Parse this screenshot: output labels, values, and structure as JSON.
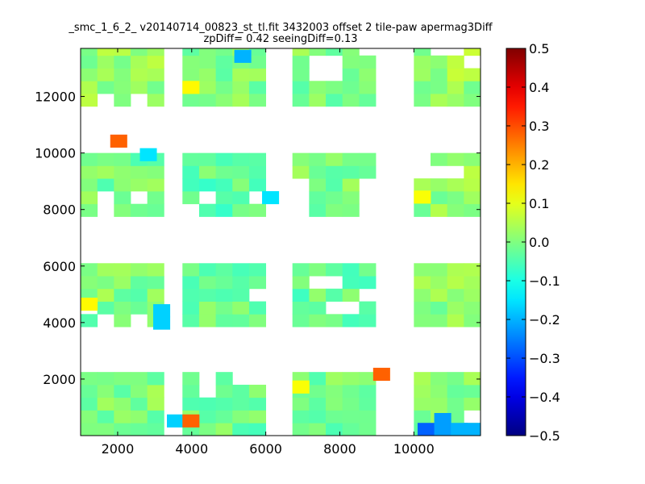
{
  "chart_data": {
    "type": "heatmap",
    "title_line1": "_smc_1_6_2_ v20140714_00823_st_tl.fit 3432003 offset 2 tile-paw apermag3Diff",
    "title_line2": "zpDiff= 0.42 seeingDiff=0.13",
    "xlabel": "",
    "ylabel": "",
    "xlim": [
      1000,
      11800
    ],
    "ylim": [
      0,
      13700
    ],
    "xticks": [
      2000,
      4000,
      6000,
      8000,
      10000
    ],
    "yticks": [
      2000,
      4000,
      6000,
      8000,
      10000,
      12000
    ],
    "colorbar": {
      "vmin": -0.5,
      "vmax": 0.5,
      "ticks": [
        "0.5",
        "0.4",
        "0.3",
        "0.2",
        "0.1",
        "0.0",
        "−0.1",
        "−0.2",
        "−0.3",
        "−0.4",
        "−0.5"
      ],
      "tick_values": [
        0.5,
        0.4,
        0.3,
        0.2,
        0.1,
        0.0,
        -0.1,
        -0.2,
        -0.3,
        -0.4,
        -0.5
      ],
      "colormap": "jet"
    },
    "cell_size": [
      450,
      450
    ],
    "blocks": [
      {
        "x0": 1000,
        "y0": 0,
        "cols": 5,
        "rows": 5,
        "base": 0.0,
        "holes": []
      },
      {
        "x0": 3750,
        "y0": 0,
        "cols": 5,
        "rows": 5,
        "base": -0.02,
        "holes": [
          [
            1,
            4
          ],
          [
            3,
            4
          ],
          [
            4,
            4
          ],
          [
            1,
            3
          ]
        ]
      },
      {
        "x0": 6720,
        "y0": 0,
        "cols": 5,
        "rows": 5,
        "base": -0.01,
        "holes": []
      },
      {
        "x0": 10000,
        "y0": 0,
        "cols": 4,
        "rows": 5,
        "base": 0.0,
        "holes": [
          [
            3,
            1
          ]
        ]
      },
      {
        "x0": 1000,
        "y0": 3850,
        "cols": 5,
        "rows": 5,
        "base": 0.0,
        "holes": [
          [
            1,
            0
          ],
          [
            3,
            0
          ],
          [
            0,
            1
          ]
        ]
      },
      {
        "x0": 3750,
        "y0": 3850,
        "cols": 5,
        "rows": 5,
        "base": -0.01,
        "holes": [
          [
            4,
            2
          ]
        ]
      },
      {
        "x0": 6720,
        "y0": 3850,
        "cols": 5,
        "rows": 5,
        "base": -0.02,
        "holes": [
          [
            2,
            1
          ],
          [
            3,
            1
          ],
          [
            4,
            2
          ],
          [
            1,
            3
          ],
          [
            2,
            3
          ]
        ]
      },
      {
        "x0": 10000,
        "y0": 3850,
        "cols": 4,
        "rows": 5,
        "base": 0.01,
        "holes": []
      },
      {
        "x0": 1000,
        "y0": 7750,
        "cols": 5,
        "rows": 5,
        "base": -0.01,
        "holes": [
          [
            1,
            1
          ],
          [
            3,
            1
          ],
          [
            1,
            0
          ]
        ]
      },
      {
        "x0": 3750,
        "y0": 7750,
        "cols": 5,
        "rows": 5,
        "base": -0.03,
        "holes": [
          [
            0,
            0
          ],
          [
            1,
            1
          ],
          [
            4,
            1
          ]
        ]
      },
      {
        "x0": 6720,
        "y0": 7750,
        "cols": 5,
        "rows": 5,
        "base": 0.0,
        "holes": [
          [
            0,
            0
          ],
          [
            0,
            1
          ],
          [
            0,
            2
          ],
          [
            4,
            0
          ],
          [
            4,
            1
          ],
          [
            4,
            2
          ]
        ]
      },
      {
        "x0": 10000,
        "y0": 7750,
        "cols": 4,
        "rows": 5,
        "base": 0.02,
        "holes": [
          [
            0,
            3
          ],
          [
            1,
            3
          ],
          [
            2,
            3
          ],
          [
            0,
            4
          ]
        ]
      },
      {
        "x0": 1000,
        "y0": 11650,
        "cols": 5,
        "rows": 5,
        "base": 0.02,
        "holes": [
          [
            1,
            0
          ],
          [
            3,
            0
          ]
        ]
      },
      {
        "x0": 3750,
        "y0": 11650,
        "cols": 5,
        "rows": 5,
        "base": 0.0,
        "holes": []
      },
      {
        "x0": 6720,
        "y0": 11650,
        "cols": 5,
        "rows": 5,
        "base": 0.0,
        "holes": [
          [
            1,
            2
          ],
          [
            2,
            2
          ],
          [
            1,
            3
          ],
          [
            2,
            3
          ],
          [
            4,
            4
          ]
        ]
      },
      {
        "x0": 10000,
        "y0": 11650,
        "cols": 4,
        "rows": 5,
        "base": 0.03,
        "holes": [
          [
            1,
            4
          ],
          [
            2,
            4
          ],
          [
            3,
            3
          ]
        ]
      }
    ],
    "special_cells": [
      {
        "x": 1800,
        "y": 10200,
        "value": 0.28
      },
      {
        "x": 1000,
        "y": 4430,
        "value": 0.13
      },
      {
        "x": 2960,
        "y": 4200,
        "value": -0.17
      },
      {
        "x": 2960,
        "y": 3760,
        "value": -0.17
      },
      {
        "x": 2600,
        "y": 9720,
        "value": -0.15
      },
      {
        "x": 3330,
        "y": 300,
        "value": -0.17
      },
      {
        "x": 3750,
        "y": 300,
        "value": 0.28
      },
      {
        "x": 3750,
        "y": 12100,
        "value": 0.13
      },
      {
        "x": 5150,
        "y": 13200,
        "value": -0.2
      },
      {
        "x": 5900,
        "y": 8200,
        "value": -0.15
      },
      {
        "x": 8900,
        "y": 1950,
        "value": 0.28
      },
      {
        "x": 6720,
        "y": 1500,
        "value": 0.12
      },
      {
        "x": 10000,
        "y": 8220,
        "value": 0.12
      },
      {
        "x": 10100,
        "y": 0,
        "value": -0.28
      },
      {
        "x": 10550,
        "y": 350,
        "value": -0.22
      },
      {
        "x": 10550,
        "y": 0,
        "value": -0.22
      },
      {
        "x": 11000,
        "y": 0,
        "value": -0.2
      },
      {
        "x": 11350,
        "y": 0,
        "value": -0.2
      }
    ]
  }
}
